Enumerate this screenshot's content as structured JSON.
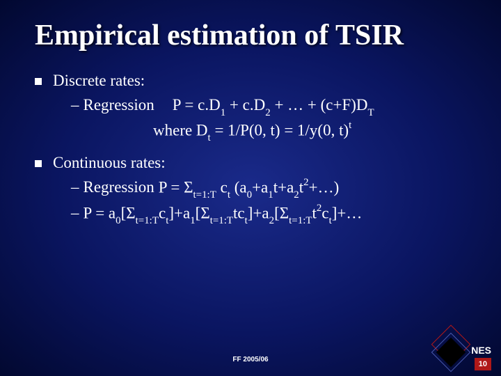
{
  "colors": {
    "bg_center": "#1a2a8a",
    "bg_mid": "#0a1560",
    "bg_edge": "#020830",
    "text": "#ffffff",
    "accent_red": "#b01818",
    "diamond_border": "#4a5ab0",
    "diamond_fill": "#000000"
  },
  "fonts": {
    "title_pt": 42,
    "body_pt": 23,
    "footer_pt": 10
  },
  "title": "Empirical estimation of TSIR",
  "sections": [
    {
      "label": "Discrete rates:",
      "items": [
        {
          "prefix": "Regression",
          "formula_html": "P = c.D<span class='sub'>1</span> + c.D<span class='sub'>2</span> + … + (c+F)D<span class='sub'>T</span>"
        },
        {
          "continuation_html": "where D<span class='sub'>t</span> = 1/P(0, t) = 1/y(0, t)<span class='sup'>t</span>"
        }
      ]
    },
    {
      "label": "Continuous rates:",
      "items": [
        {
          "prefix": "Regression",
          "inline_html": "P = Σ<span class='sub'>t=1:T</span> c<span class='sub'>t</span> (a<span class='sub'>0</span>+a<span class='sub'>1</span>t+a<span class='sub'>2</span>t<span class='sup'>2</span>+…)"
        },
        {
          "prefix": "",
          "inline_html": "P = a<span class='sub'>0</span>[Σ<span class='sub'>t=1:T</span>c<span class='sub'>t</span>]+a<span class='sub'>1</span>[Σ<span class='sub'>t=1:T</span>tc<span class='sub'>t</span>]+a<span class='sub'>2</span>[Σ<span class='sub'>t=1:T</span>t<span class='sup'>2</span>c<span class='sub'>t</span>]+…"
        }
      ]
    }
  ],
  "footer": {
    "center": "FF 2005/06",
    "org": "NES",
    "page": "10"
  }
}
